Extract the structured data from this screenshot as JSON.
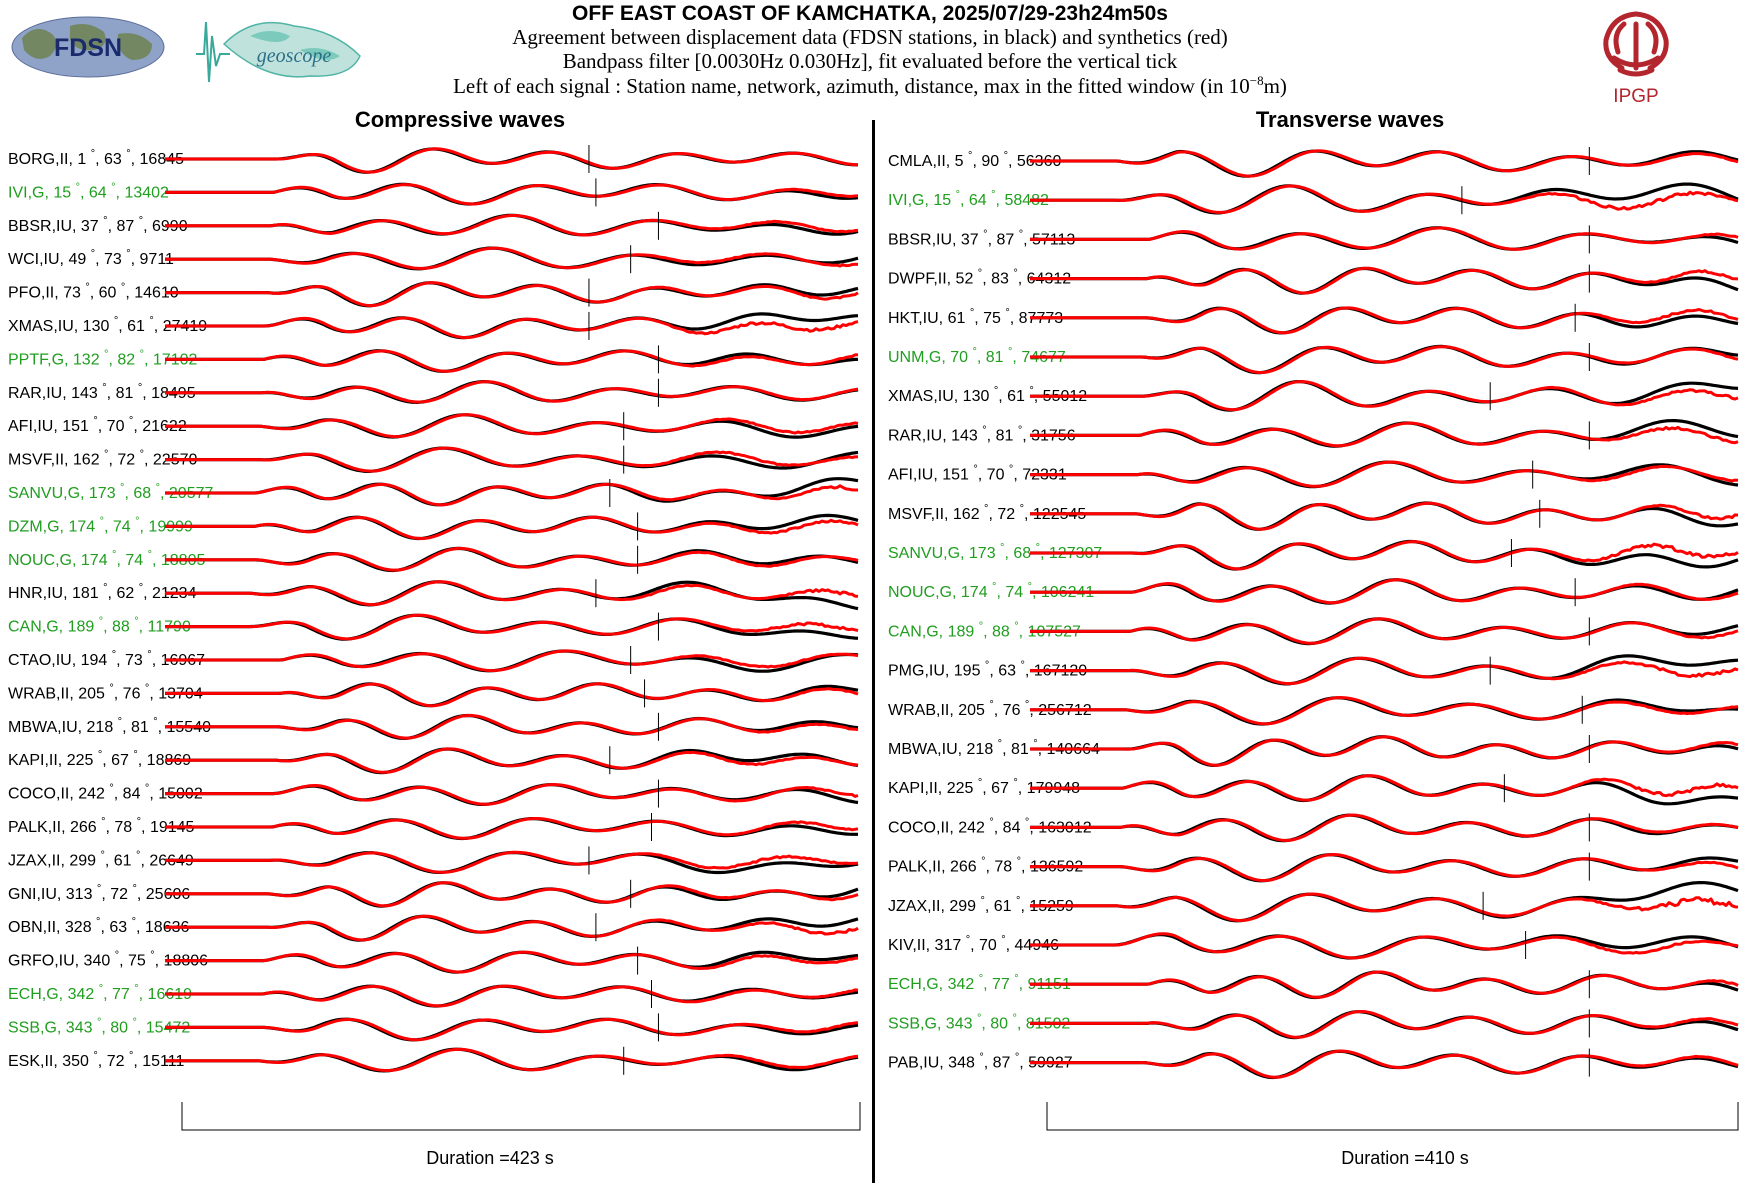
{
  "header": {
    "title": "OFF EAST COAST OF KAMCHATKA, 2025/07/29-23h24m50s",
    "line1": "Agreement between displacement data (FDSN stations, in black) and synthetics (red)",
    "line2": "Bandpass filter [0.0030Hz 0.030Hz], fit evaluated before the vertical tick",
    "line3_prefix": "Left of each signal : Station name, network, azimuth, distance, max in the fitted window (in 10",
    "line3_exp": "−8",
    "line3_suffix": "m)"
  },
  "logos": {
    "fdsn": "FDSN",
    "geoscope": "geoscope",
    "ipgp": "IPGP"
  },
  "colors": {
    "data": "#000000",
    "synthetic": "#ff0000",
    "geoscope_station": "#1f9e1f",
    "other_station": "#000000"
  },
  "chart_data": [
    {
      "type": "line",
      "title": "Compressive waves",
      "duration_label": "Duration =423 s",
      "series_legend": {
        "data": "black",
        "synthetics": "red"
      },
      "stations": [
        {
          "name": "BORG",
          "net": "II",
          "az": "1",
          "dist": "63",
          "max": "16845",
          "geoscope": false,
          "tick": 0.61,
          "drift": 0.0
        },
        {
          "name": "IVI",
          "net": "G",
          "az": "15",
          "dist": "64",
          "max": "13402",
          "geoscope": true,
          "tick": 0.62,
          "drift": 0.2
        },
        {
          "name": "BBSR",
          "net": "IU",
          "az": "37",
          "dist": "87",
          "max": "6990",
          "geoscope": false,
          "tick": 0.71,
          "drift": 0.5
        },
        {
          "name": "WCI",
          "net": "IU",
          "az": "49",
          "dist": "73",
          "max": "9711",
          "geoscope": false,
          "tick": 0.67,
          "drift": 0.7
        },
        {
          "name": "PFO",
          "net": "II",
          "az": "73",
          "dist": "60",
          "max": "14610",
          "geoscope": false,
          "tick": 0.61,
          "drift": 0.4
        },
        {
          "name": "XMAS",
          "net": "IU",
          "az": "130",
          "dist": "61",
          "max": "27419",
          "geoscope": false,
          "tick": 0.61,
          "drift": 1.3
        },
        {
          "name": "PPTF",
          "net": "G",
          "az": "132",
          "dist": "82",
          "max": "17102",
          "geoscope": true,
          "tick": 0.71,
          "drift": 0.8
        },
        {
          "name": "RAR",
          "net": "IU",
          "az": "143",
          "dist": "81",
          "max": "18495",
          "geoscope": false,
          "tick": 0.71,
          "drift": 0.1
        },
        {
          "name": "AFI",
          "net": "IU",
          "az": "151",
          "dist": "70",
          "max": "21622",
          "geoscope": false,
          "tick": 0.66,
          "drift": 0.6
        },
        {
          "name": "MSVF",
          "net": "II",
          "az": "162",
          "dist": "72",
          "max": "22570",
          "geoscope": false,
          "tick": 0.66,
          "drift": 1.0
        },
        {
          "name": "SANVU",
          "net": "G",
          "az": "173",
          "dist": "68",
          "max": "20577",
          "geoscope": true,
          "tick": 0.64,
          "drift": 0.9
        },
        {
          "name": "DZM",
          "net": "G",
          "az": "174",
          "dist": "74",
          "max": "19999",
          "geoscope": true,
          "tick": 0.68,
          "drift": 0.7
        },
        {
          "name": "NOUC",
          "net": "G",
          "az": "174",
          "dist": "74",
          "max": "18805",
          "geoscope": true,
          "tick": 0.68,
          "drift": 0.5
        },
        {
          "name": "HNR",
          "net": "IU",
          "az": "181",
          "dist": "62",
          "max": "21234",
          "geoscope": false,
          "tick": 0.62,
          "drift": 1.2
        },
        {
          "name": "CAN",
          "net": "G",
          "az": "189",
          "dist": "88",
          "max": "11790",
          "geoscope": true,
          "tick": 0.71,
          "drift": 0.9
        },
        {
          "name": "CTAO",
          "net": "IU",
          "az": "194",
          "dist": "73",
          "max": "16967",
          "geoscope": false,
          "tick": 0.67,
          "drift": 0.8
        },
        {
          "name": "WRAB",
          "net": "II",
          "az": "205",
          "dist": "76",
          "max": "13704",
          "geoscope": false,
          "tick": 0.69,
          "drift": 0.4
        },
        {
          "name": "MBWA",
          "net": "IU",
          "az": "218",
          "dist": "81",
          "max": "15540",
          "geoscope": false,
          "tick": 0.71,
          "drift": 0.3
        },
        {
          "name": "KAPI",
          "net": "II",
          "az": "225",
          "dist": "67",
          "max": "18869",
          "geoscope": false,
          "tick": 0.64,
          "drift": 0.6
        },
        {
          "name": "COCO",
          "net": "II",
          "az": "242",
          "dist": "84",
          "max": "15002",
          "geoscope": false,
          "tick": 0.71,
          "drift": 0.7
        },
        {
          "name": "PALK",
          "net": "II",
          "az": "266",
          "dist": "78",
          "max": "19145",
          "geoscope": false,
          "tick": 0.7,
          "drift": 0.5
        },
        {
          "name": "JZAX",
          "net": "II",
          "az": "299",
          "dist": "61",
          "max": "26649",
          "geoscope": false,
          "tick": 0.61,
          "drift": 0.9
        },
        {
          "name": "GNI",
          "net": "IU",
          "az": "313",
          "dist": "72",
          "max": "25606",
          "geoscope": false,
          "tick": 0.67,
          "drift": 0.6
        },
        {
          "name": "OBN",
          "net": "II",
          "az": "328",
          "dist": "63",
          "max": "18636",
          "geoscope": false,
          "tick": 0.62,
          "drift": 0.8
        },
        {
          "name": "GRFO",
          "net": "IU",
          "az": "340",
          "dist": "75",
          "max": "18806",
          "geoscope": false,
          "tick": 0.68,
          "drift": 0.6
        },
        {
          "name": "ECH",
          "net": "G",
          "az": "342",
          "dist": "77",
          "max": "16619",
          "geoscope": true,
          "tick": 0.7,
          "drift": 0.4
        },
        {
          "name": "SSB",
          "net": "G",
          "az": "343",
          "dist": "80",
          "max": "15472",
          "geoscope": true,
          "tick": 0.71,
          "drift": 0.3
        },
        {
          "name": "ESK",
          "net": "II",
          "az": "350",
          "dist": "72",
          "max": "15111",
          "geoscope": false,
          "tick": 0.66,
          "drift": 0.3
        }
      ]
    },
    {
      "type": "line",
      "title": "Transverse waves",
      "duration_label": "Duration =410 s",
      "series_legend": {
        "data": "black",
        "synthetics": "red"
      },
      "stations": [
        {
          "name": "CMLA",
          "net": "II",
          "az": "5",
          "dist": "90",
          "max": "56360",
          "geoscope": false,
          "tick": 0.79,
          "drift": 0.2
        },
        {
          "name": "IVI",
          "net": "G",
          "az": "15",
          "dist": "64",
          "max": "58482",
          "geoscope": true,
          "tick": 0.61,
          "drift": 1.3
        },
        {
          "name": "BBSR",
          "net": "IU",
          "az": "37",
          "dist": "87",
          "max": "57113",
          "geoscope": false,
          "tick": 0.79,
          "drift": 0.5
        },
        {
          "name": "DWPF",
          "net": "II",
          "az": "52",
          "dist": "83",
          "max": "64312",
          "geoscope": false,
          "tick": 0.79,
          "drift": 0.7
        },
        {
          "name": "HKT",
          "net": "IU",
          "az": "61",
          "dist": "75",
          "max": "87773",
          "geoscope": false,
          "tick": 0.77,
          "drift": 0.9
        },
        {
          "name": "UNM",
          "net": "G",
          "az": "70",
          "dist": "81",
          "max": "74677",
          "geoscope": true,
          "tick": 0.79,
          "drift": 0.5
        },
        {
          "name": "XMAS",
          "net": "IU",
          "az": "130",
          "dist": "61",
          "max": "55012",
          "geoscope": false,
          "tick": 0.65,
          "drift": 0.8
        },
        {
          "name": "RAR",
          "net": "IU",
          "az": "143",
          "dist": "81",
          "max": "31756",
          "geoscope": false,
          "tick": 0.79,
          "drift": 1.1
        },
        {
          "name": "AFI",
          "net": "IU",
          "az": "151",
          "dist": "70",
          "max": "72331",
          "geoscope": false,
          "tick": 0.71,
          "drift": 0.6
        },
        {
          "name": "MSVF",
          "net": "II",
          "az": "162",
          "dist": "72",
          "max": "122545",
          "geoscope": false,
          "tick": 0.72,
          "drift": 0.7
        },
        {
          "name": "SANVU",
          "net": "G",
          "az": "173",
          "dist": "68",
          "max": "127307",
          "geoscope": true,
          "tick": 0.68,
          "drift": 1.2
        },
        {
          "name": "NOUC",
          "net": "G",
          "az": "174",
          "dist": "74",
          "max": "106241",
          "geoscope": true,
          "tick": 0.77,
          "drift": 0.5
        },
        {
          "name": "CAN",
          "net": "G",
          "az": "189",
          "dist": "88",
          "max": "107527",
          "geoscope": true,
          "tick": 0.79,
          "drift": 0.4
        },
        {
          "name": "PMG",
          "net": "IU",
          "az": "195",
          "dist": "63",
          "max": "167120",
          "geoscope": false,
          "tick": 0.65,
          "drift": 1.0
        },
        {
          "name": "WRAB",
          "net": "II",
          "az": "205",
          "dist": "76",
          "max": "256712",
          "geoscope": false,
          "tick": 0.78,
          "drift": 0.8
        },
        {
          "name": "MBWA",
          "net": "IU",
          "az": "218",
          "dist": "81",
          "max": "140664",
          "geoscope": false,
          "tick": 0.79,
          "drift": 0.3
        },
        {
          "name": "KAPI",
          "net": "II",
          "az": "225",
          "dist": "67",
          "max": "179948",
          "geoscope": false,
          "tick": 0.67,
          "drift": 1.1
        },
        {
          "name": "COCO",
          "net": "II",
          "az": "242",
          "dist": "84",
          "max": "163012",
          "geoscope": false,
          "tick": 0.79,
          "drift": 0.4
        },
        {
          "name": "PALK",
          "net": "II",
          "az": "266",
          "dist": "78",
          "max": "136592",
          "geoscope": false,
          "tick": 0.79,
          "drift": 0.6
        },
        {
          "name": "JZAX",
          "net": "II",
          "az": "299",
          "dist": "61",
          "max": "15259",
          "geoscope": false,
          "tick": 0.64,
          "drift": 1.6
        },
        {
          "name": "KIV",
          "net": "II",
          "az": "317",
          "dist": "70",
          "max": "44946",
          "geoscope": false,
          "tick": 0.7,
          "drift": 0.9
        },
        {
          "name": "ECH",
          "net": "G",
          "az": "342",
          "dist": "77",
          "max": "91151",
          "geoscope": true,
          "tick": 0.79,
          "drift": 0.4
        },
        {
          "name": "SSB",
          "net": "G",
          "az": "343",
          "dist": "80",
          "max": "81502",
          "geoscope": true,
          "tick": 0.79,
          "drift": 0.3
        },
        {
          "name": "PAB",
          "net": "IU",
          "az": "348",
          "dist": "87",
          "max": "59927",
          "geoscope": false,
          "tick": 0.79,
          "drift": 0.3
        }
      ]
    }
  ]
}
